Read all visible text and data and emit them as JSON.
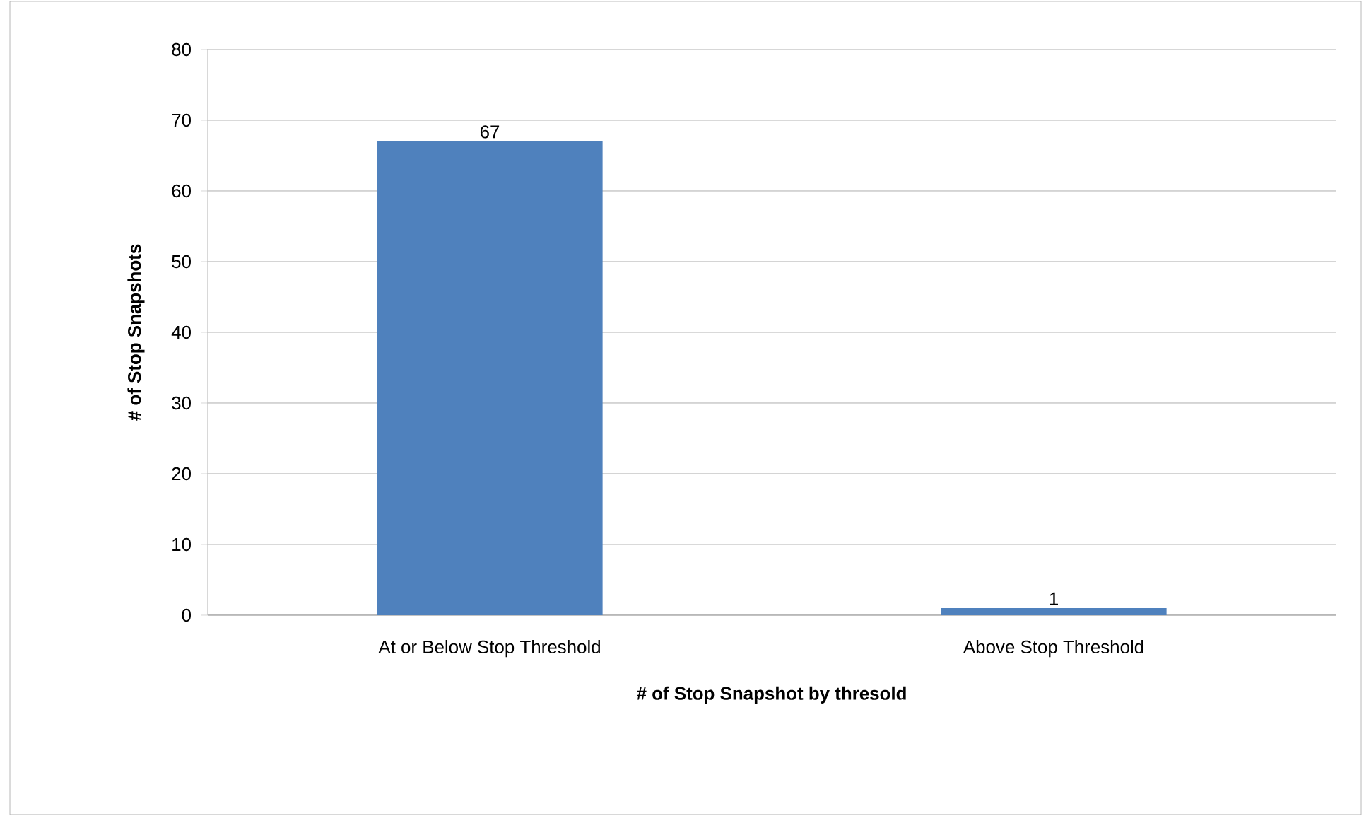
{
  "chart_data": {
    "type": "bar",
    "xlabel": "# of Stop Snapshot  by thresold",
    "ylabel": "# of Stop Snapshots",
    "categories": [
      "At or Below Stop Threshold",
      "Above Stop Threshold"
    ],
    "values": [
      67,
      1
    ],
    "color": "#4f81bd",
    "ylim": [
      0,
      80
    ],
    "yticks": [
      0,
      10,
      20,
      30,
      40,
      50,
      60,
      70,
      80
    ],
    "grid": "y",
    "data_labels": true
  }
}
